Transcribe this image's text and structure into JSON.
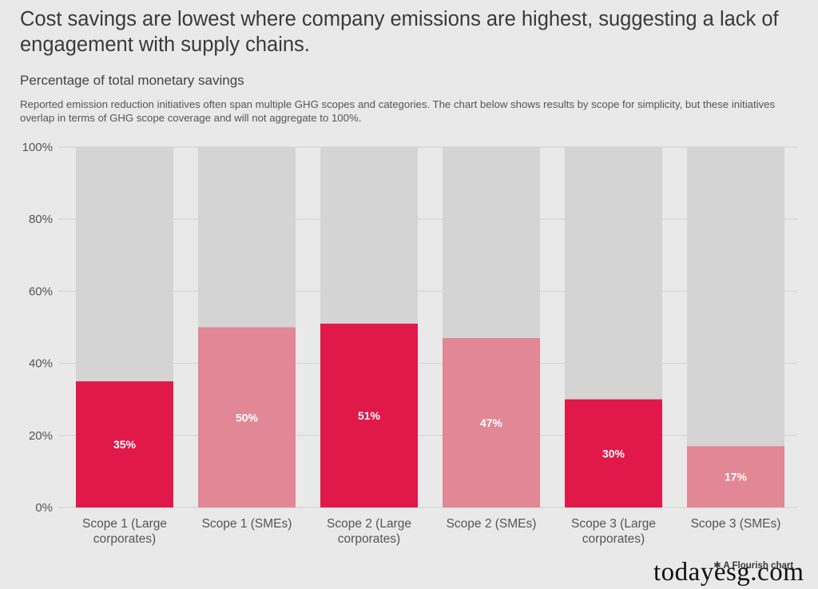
{
  "header": {
    "title": "Cost savings are lowest where company emissions are highest, suggesting a lack of engagement with supply chains.",
    "subtitle": "Percentage of total monetary savings",
    "note": "Reported emission reduction initiatives often span multiple GHG scopes and categories. The chart below shows results by scope for simplicity, but these initiatives overlap in terms of GHG scope coverage and will not aggregate to 100%."
  },
  "chart_data": {
    "type": "bar",
    "title": "Percentage of total monetary savings",
    "xlabel": "",
    "ylabel": "",
    "ylim": [
      0,
      100
    ],
    "yticks": [
      0,
      20,
      40,
      60,
      80,
      100
    ],
    "ytick_labels": [
      "0%",
      "20%",
      "40%",
      "60%",
      "80%",
      "100%"
    ],
    "grid": true,
    "categories": [
      [
        "Scope 1 (Large",
        "corporates)"
      ],
      [
        "Scope 1 (SMEs)"
      ],
      [
        "Scope 2 (Large",
        "corporates)"
      ],
      [
        "Scope 2 (SMEs)"
      ],
      [
        "Scope 3 (Large",
        "corporates)"
      ],
      [
        "Scope 3 (SMEs)"
      ]
    ],
    "values": [
      35,
      50,
      51,
      47,
      30,
      17
    ],
    "value_labels": [
      "35%",
      "50%",
      "51%",
      "47%",
      "30%",
      "17%"
    ],
    "background_value": 100,
    "colors": {
      "large_corporates": "#e0194a",
      "smes": "#e18795",
      "background_bar": "#d4d4d4",
      "grid": "#d0d0d0"
    },
    "bar_color_keys": [
      "large_corporates",
      "smes",
      "large_corporates",
      "smes",
      "large_corporates",
      "smes"
    ]
  },
  "footer": {
    "credit_icon": "asterisk-icon",
    "credit_symbol": "✱",
    "credit": "A Flourish chart",
    "watermark": "todayesg.com"
  }
}
